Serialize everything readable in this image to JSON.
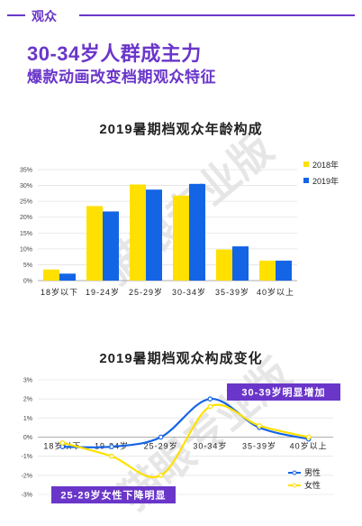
{
  "header": {
    "section_label": "观众",
    "title": "30-34岁人群成主力",
    "subtitle": "爆款动画改变档期观众特征"
  },
  "colors": {
    "accent": "#6a36c9",
    "series_2018": "#ffe000",
    "series_2019": "#1464e6",
    "male_line": "#1464e6",
    "female_line": "#ffe000"
  },
  "watermark": "猫眼专业版",
  "chart_data": [
    {
      "type": "bar",
      "title": "2019暑期档观众年龄构成",
      "categories": [
        "18岁以下",
        "19-24岁",
        "25-29岁",
        "30-34岁",
        "35-39岁",
        "40岁以上"
      ],
      "series": [
        {
          "name": "2018年",
          "values": [
            3.5,
            23.5,
            30.3,
            26.8,
            9.8,
            6.3
          ]
        },
        {
          "name": "2019年",
          "values": [
            2.2,
            21.8,
            28.7,
            30.5,
            10.8,
            6.3
          ]
        }
      ],
      "ylim": [
        0,
        35
      ],
      "yticks": [
        "0%",
        "5%",
        "10%",
        "15%",
        "20%",
        "25%",
        "30%",
        "35%"
      ],
      "legend": "right"
    },
    {
      "type": "line",
      "title": "2019暑期档观众构成变化",
      "categories": [
        "18岁以下",
        "19-24岁",
        "25-29岁",
        "30-34岁",
        "35-39岁",
        "40岁以上"
      ],
      "series": [
        {
          "name": "男性",
          "values": [
            -0.5,
            -0.5,
            0.0,
            2.0,
            0.5,
            -0.1
          ]
        },
        {
          "name": "女性",
          "values": [
            -0.3,
            -1.0,
            -2.0,
            1.6,
            0.6,
            0.0
          ]
        }
      ],
      "ylim": [
        -3,
        3
      ],
      "yticks": [
        "-3%",
        "-2%",
        "-1%",
        "0%",
        "1%",
        "2%",
        "3%"
      ],
      "legend": "bottom-right",
      "annotations": [
        "30-39岁明显增加",
        "25-29岁女性下降明显"
      ]
    }
  ]
}
